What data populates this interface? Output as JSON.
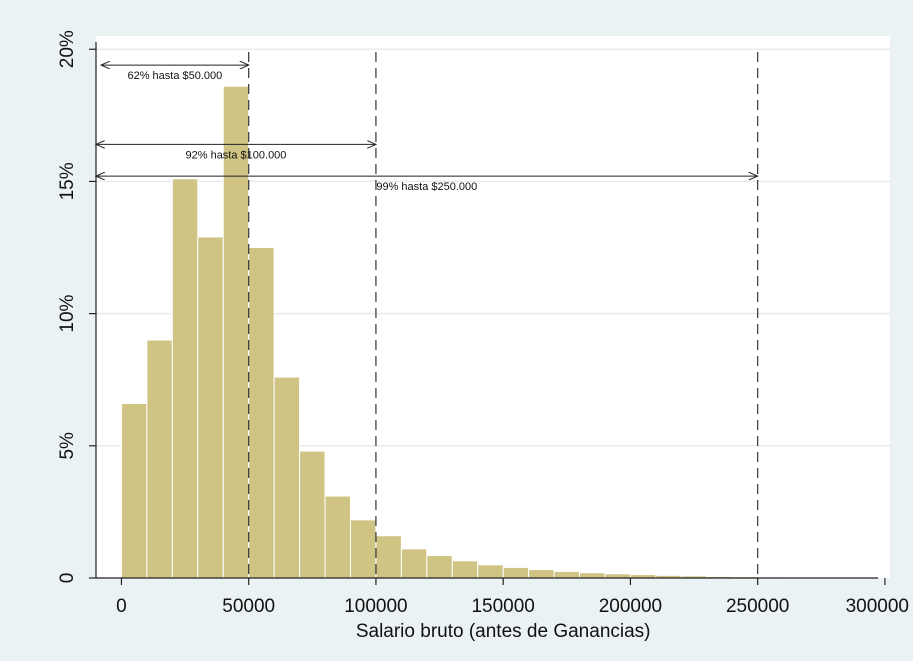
{
  "colors": {
    "frame": "#eaf2f3",
    "plot": "#ffffff",
    "bar_fill": "#cfc483",
    "bar_stroke": "#ffffff",
    "grid": "#e4ecee",
    "axis": "#222222"
  },
  "chart_data": {
    "type": "bar",
    "xlabel": "Salario bruto (antes de Ganancias)",
    "ylabel": "",
    "xlim": [
      -10000,
      302000
    ],
    "ylim": [
      0,
      20.5
    ],
    "x_ticks": [
      0,
      50000,
      100000,
      150000,
      200000,
      250000,
      300000
    ],
    "x_tick_labels": [
      "0",
      "50000",
      "100000",
      "150000",
      "200000",
      "250000",
      "300000"
    ],
    "y_ticks": [
      0,
      5,
      10,
      15,
      20
    ],
    "y_tick_labels": [
      "0",
      "5%",
      "10%",
      "15%",
      "20%"
    ],
    "grid": true,
    "bin_width": 10000,
    "bins_start": [
      0,
      10000,
      20000,
      30000,
      40000,
      50000,
      60000,
      70000,
      80000,
      90000,
      100000,
      110000,
      120000,
      130000,
      140000,
      150000,
      160000,
      170000,
      180000,
      190000,
      200000,
      210000,
      220000,
      230000,
      240000,
      250000,
      260000,
      270000,
      280000,
      290000
    ],
    "values": [
      6.6,
      9.0,
      15.1,
      12.9,
      18.6,
      12.5,
      7.6,
      4.8,
      3.1,
      2.2,
      1.6,
      1.1,
      0.85,
      0.65,
      0.5,
      0.4,
      0.32,
      0.25,
      0.2,
      0.16,
      0.13,
      0.1,
      0.08,
      0.06,
      0.05,
      0.04,
      0.03,
      0.02,
      0.02,
      0.01
    ],
    "reference_lines": [
      50000,
      100000,
      250000
    ],
    "annotations": [
      {
        "text": "62% hasta $50.000",
        "from": -8000,
        "to": 50000,
        "y": 19.4
      },
      {
        "text": "92% hasta $100.000",
        "from": -10000,
        "to": 100000,
        "y": 16.4
      },
      {
        "text": "99% hasta $250.000",
        "from": -10000,
        "to": 250000,
        "y": 15.2
      }
    ]
  }
}
